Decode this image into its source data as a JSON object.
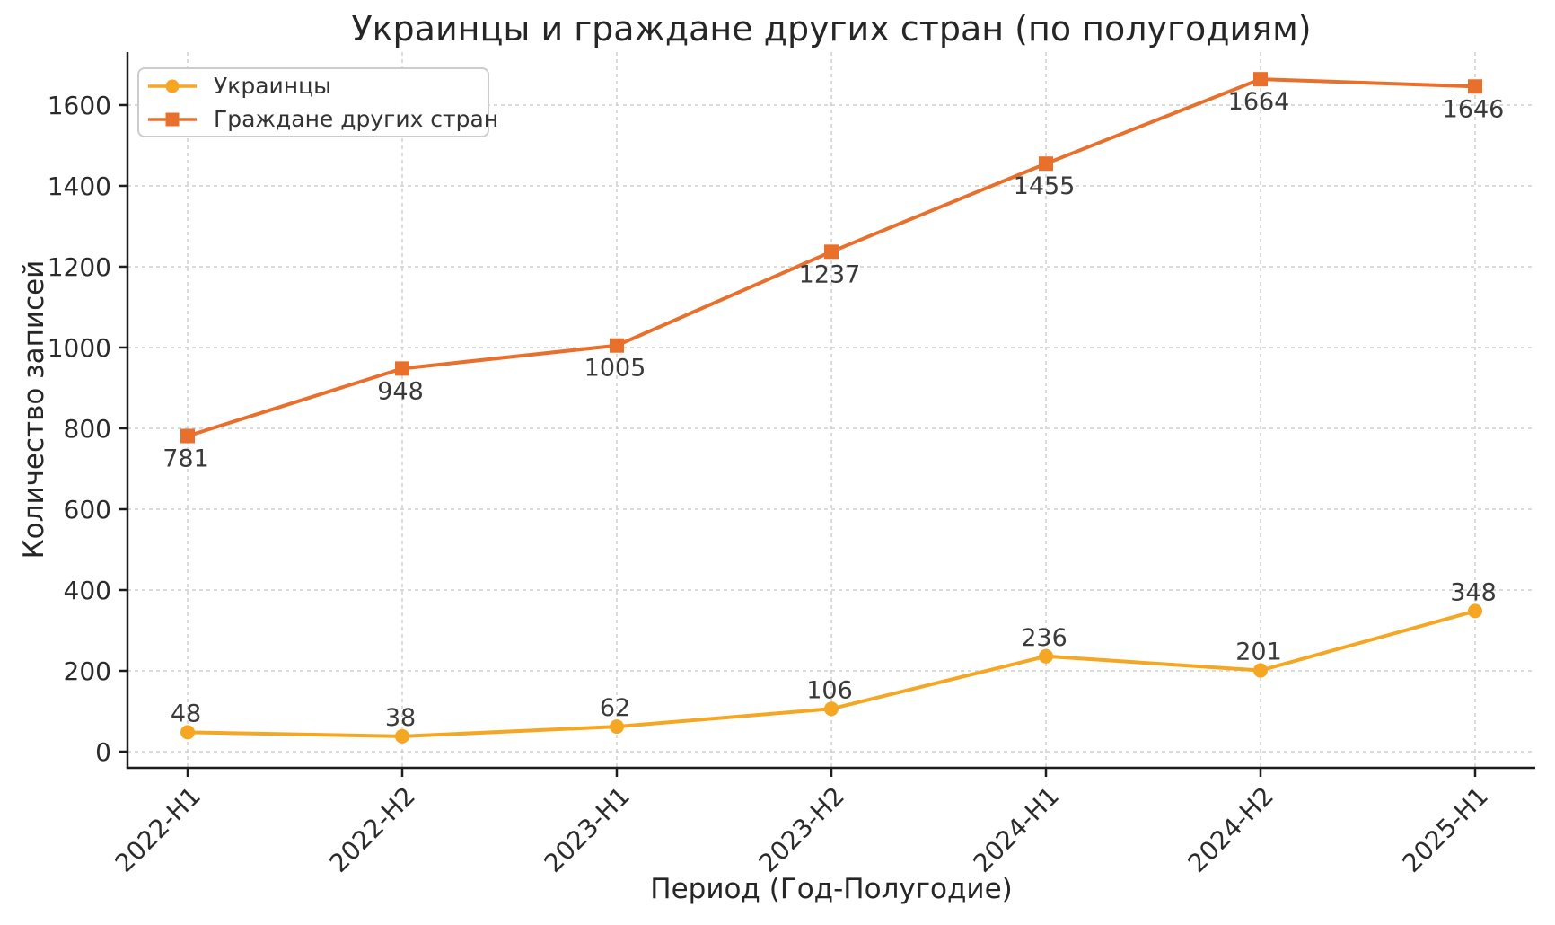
{
  "chart_data": {
    "type": "line",
    "title": "Украинцы и граждане других стран (по полугодиям)",
    "xlabel": "Период (Год-Полугодие)",
    "ylabel": "Количество записей",
    "categories": [
      "2022-H1",
      "2022-H2",
      "2023-H1",
      "2023-H2",
      "2024-H1",
      "2024-H2",
      "2025-H1"
    ],
    "series": [
      {
        "name": "Украинцы",
        "marker": "circle",
        "color": "#f5a623",
        "values": [
          48,
          38,
          62,
          106,
          236,
          201,
          348
        ],
        "labels_position": "above"
      },
      {
        "name": "Граждане других стран",
        "marker": "square",
        "color": "#e8702c",
        "values": [
          781,
          948,
          1005,
          1237,
          1455,
          1664,
          1646
        ],
        "labels_position": "below"
      }
    ],
    "yticks": [
      0,
      200,
      400,
      600,
      800,
      1000,
      1200,
      1400,
      1600
    ],
    "ylim": [
      -40,
      1731
    ],
    "grid": true,
    "grid_style": "dashed",
    "legend_position": "upper-left",
    "show_point_labels": true
  },
  "style": {
    "background": "#ffffff",
    "grid_color": "#cfcfcf",
    "spine_color": "#1c1c1c",
    "tick_label_color": "#2b2b2b",
    "annotation_color": "#3a3a3a",
    "legend_border_color": "#cccccc",
    "legend_text_color": "#333333"
  }
}
